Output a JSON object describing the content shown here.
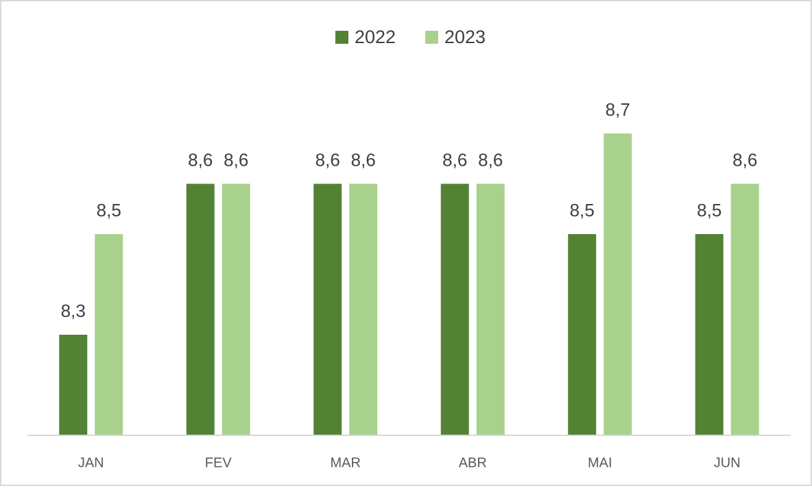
{
  "chart_data": {
    "type": "bar",
    "categories": [
      "JAN",
      "FEV",
      "MAR",
      "ABR",
      "MAI",
      "JUN"
    ],
    "series": [
      {
        "name": "2022",
        "color": "#548235",
        "values": [
          8.3,
          8.6,
          8.6,
          8.6,
          8.5,
          8.5
        ],
        "value_labels": [
          "8,3",
          "8,6",
          "8,6",
          "8,6",
          "8,5",
          "8,5"
        ]
      },
      {
        "name": "2023",
        "color": "#a9d18e",
        "values": [
          8.5,
          8.6,
          8.6,
          8.6,
          8.7,
          8.6
        ],
        "value_labels": [
          "8,5",
          "8,6",
          "8,6",
          "8,6",
          "8,7",
          "8,6"
        ]
      }
    ],
    "ylim": [
      8.1,
      8.8
    ],
    "legend": "top"
  }
}
